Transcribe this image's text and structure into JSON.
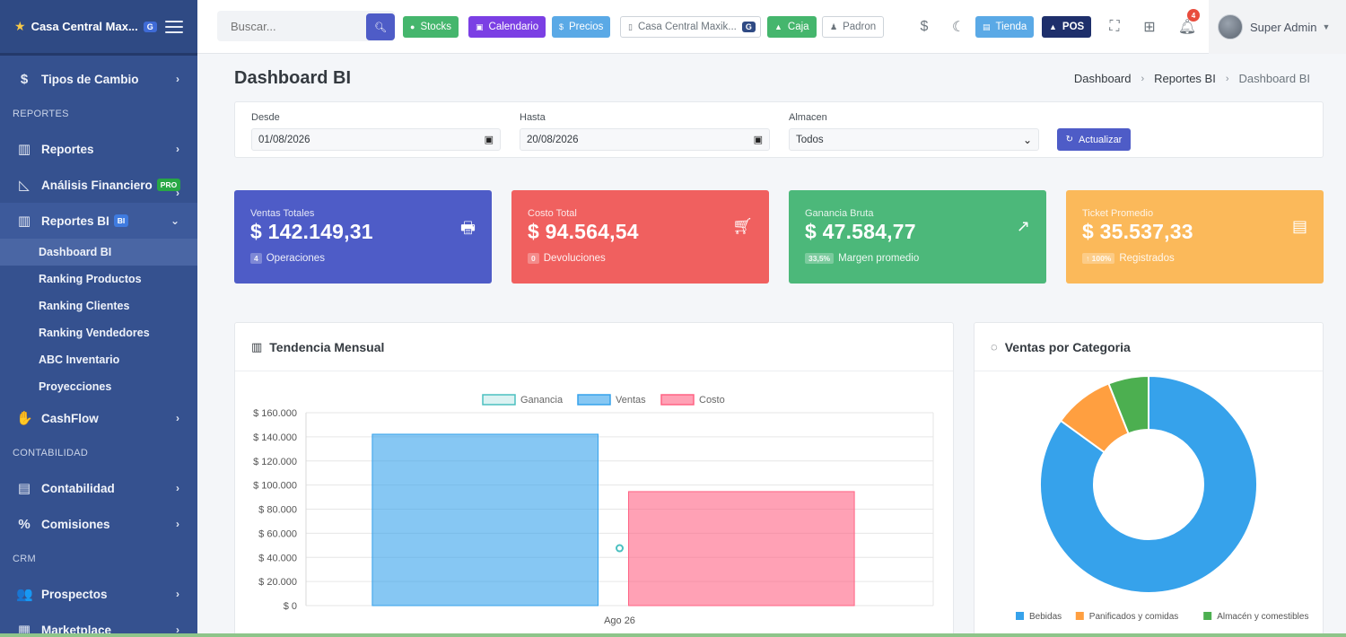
{
  "sidebar": {
    "brand": "Casa Central Max...",
    "brand_badge": "G",
    "tipos_cambio": "Tipos de Cambio",
    "section_reportes": "REPORTES",
    "reportes": "Reportes",
    "analisis": "Análisis Financiero",
    "analisis_badge": "PRO",
    "reportes_bi": "Reportes BI",
    "reportes_bi_badge": "BI",
    "sub_items": [
      "Dashboard BI",
      "Ranking Productos",
      "Ranking Clientes",
      "Ranking Vendedores",
      "ABC Inventario",
      "Proyecciones"
    ],
    "cashflow": "CashFlow",
    "section_contabilidad": "CONTABILIDAD",
    "contabilidad": "Contabilidad",
    "comisiones": "Comisiones",
    "section_crm": "CRM",
    "prospectos": "Prospectos",
    "marketplace": "Marketplace"
  },
  "topbar": {
    "search_placeholder": "Buscar...",
    "stocks": "Stocks",
    "calendario": "Calendario",
    "precios": "Precios",
    "sucursal": "Casa Central Maxik...",
    "sucursal_badge": "G",
    "caja": "Caja",
    "padron": "Padron",
    "tienda": "Tienda",
    "pos": "POS",
    "notifications": "4",
    "user": "Super Admin",
    "colors": {
      "stocks": "#45b66d",
      "calendario": "#7b3fe4",
      "precios": "#5aa9e6",
      "caja": "#45b66d",
      "tienda": "#5aa9e6",
      "pos": "#1e2f6b"
    }
  },
  "page": {
    "title": "Dashboard BI",
    "breadcrumb": [
      "Dashboard",
      "Reportes BI",
      "Dashboard BI"
    ]
  },
  "filters": {
    "desde_label": "Desde",
    "desde_value": "01/08/2026",
    "hasta_label": "Hasta",
    "hasta_value": "20/08/2026",
    "almacen_label": "Almacen",
    "almacen_value": "Todos",
    "update_label": "Actualizar"
  },
  "stats": [
    {
      "label": "Ventas Totales",
      "value": "$ 142.149,31",
      "badge": "4",
      "sub": "Operaciones",
      "color": "#4e5cc7"
    },
    {
      "label": "Costo Total",
      "value": "$ 94.564,54",
      "badge": "0",
      "sub": "Devoluciones",
      "color": "#f0605f"
    },
    {
      "label": "Ganancia Bruta",
      "value": "$ 47.584,77",
      "badge": "33,5%",
      "sub": "Margen promedio",
      "color": "#4cb87a"
    },
    {
      "label": "Ticket Promedio",
      "value": "$ 35.537,33",
      "badge": "↑ 100%",
      "sub": "Registrados",
      "color": "#fbb95a"
    }
  ],
  "trend_card": {
    "title": "Tendencia Mensual"
  },
  "category_card": {
    "title": "Ventas por Categoria"
  },
  "chart_data": [
    {
      "type": "bar",
      "categories": [
        "Ago 26"
      ],
      "series": [
        {
          "name": "Ganancia",
          "values": [
            47584.77
          ],
          "render": "point",
          "color": "#4bc0c0"
        },
        {
          "name": "Ventas",
          "values": [
            142149.31
          ],
          "color": "#36a2eb"
        },
        {
          "name": "Costo",
          "values": [
            94564.54
          ],
          "color": "#ff6384"
        }
      ],
      "ylim": [
        0,
        160000
      ],
      "yticks": [
        "$ 0",
        "$ 20.000",
        "$ 40.000",
        "$ 60.000",
        "$ 80.000",
        "$ 100.000",
        "$ 120.000",
        "$ 140.000",
        "$ 160.000"
      ],
      "yticks_values": [
        0,
        20000,
        40000,
        60000,
        80000,
        100000,
        120000,
        140000,
        160000
      ],
      "legend": "top",
      "grid": true
    },
    {
      "type": "pie",
      "variant": "doughnut",
      "labels": [
        "Bebidas",
        "Panificados y comidas",
        "Almacén y comestibles"
      ],
      "values": [
        85,
        9,
        6
      ],
      "colors": [
        "#36a2eb",
        "#ff9f40",
        "#4caf50"
      ],
      "legend": "bottom"
    }
  ]
}
